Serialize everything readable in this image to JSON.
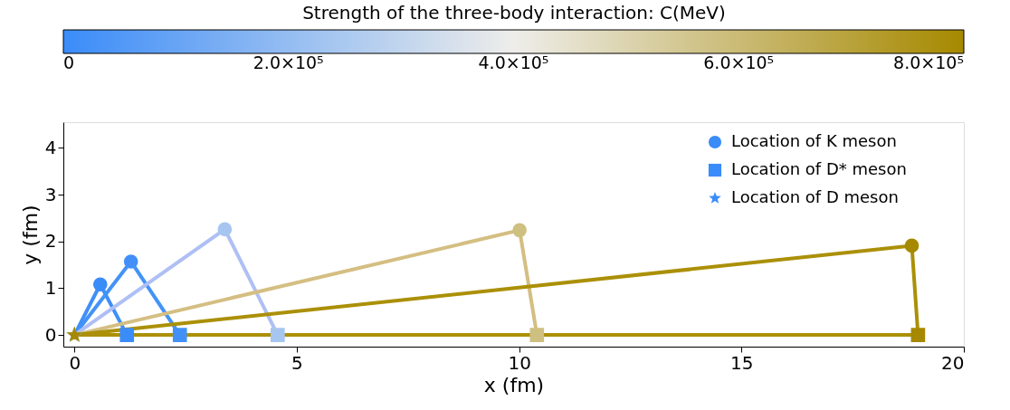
{
  "chart_data": {
    "type": "line",
    "xlabel": "x (fm)",
    "ylabel": "y (fm)",
    "clabel": "Strength of the three-body interaction:  C(MeV)",
    "xlim": [
      -0.25,
      20
    ],
    "ylim": [
      -0.25,
      4.55
    ],
    "xticks": [
      0,
      5,
      10,
      15,
      20
    ],
    "yticks": [
      0,
      1,
      2,
      3,
      4
    ],
    "clim": [
      0,
      800000
    ],
    "cticks": [
      0,
      {
        "value": 200000,
        "label": "2.0×10⁵"
      },
      {
        "value": 400000,
        "label": "4.0×10⁵"
      },
      {
        "value": 600000,
        "label": "6.0×10⁵"
      },
      {
        "value": 800000,
        "label": "8.0×10⁵"
      }
    ],
    "grid": false,
    "legend": "top right",
    "series": [
      {
        "color": "#3f8ff8",
        "x": [
          0,
          0.58,
          1.18
        ],
        "values": [
          0,
          1.08,
          0
        ]
      },
      {
        "color": "#4393f7",
        "x": [
          0,
          1.27,
          2.37
        ],
        "values": [
          0,
          1.57,
          0
        ]
      },
      {
        "color": "#aebff5",
        "x": [
          0,
          3.38,
          4.57
        ],
        "values": [
          0,
          2.26,
          0
        ]
      },
      {
        "color": "#d4be82",
        "x": [
          0,
          10.01,
          10.4
        ],
        "values": [
          0,
          2.24,
          0
        ]
      },
      {
        "color": "#ab9008",
        "x": [
          0,
          18.83,
          18.97
        ],
        "values": [
          0,
          1.91,
          0
        ]
      },
      {
        "color": "#ab9008",
        "x": [
          0,
          18.97
        ],
        "values": [
          0,
          0
        ]
      },
      {
        "type": "scatter",
        "name": "Location of K  meson",
        "marker": "circle",
        "x": [
          0.58,
          1.27,
          3.38,
          10.01,
          18.83
        ],
        "values": [
          1.08,
          1.57,
          2.26,
          2.24,
          1.91
        ],
        "colors": [
          "#3a8cf9",
          "#438ff8",
          "#a6c6f0",
          "#cec081",
          "#a68900"
        ],
        "cvalues": [
          0,
          20000,
          240000,
          580000,
          800000
        ]
      },
      {
        "type": "scatter",
        "name": "Location of D* meson",
        "marker": "square",
        "x": [
          1.18,
          2.37,
          4.57,
          10.4,
          18.97
        ],
        "values": [
          0,
          0,
          0,
          0,
          0
        ],
        "colors": [
          "#3a8cf9",
          "#438ff8",
          "#a6c6f0",
          "#cec081",
          "#a68900"
        ],
        "cvalues": [
          0,
          20000,
          240000,
          580000,
          800000
        ]
      },
      {
        "type": "scatter",
        "name": "Location of D  meson",
        "marker": "star",
        "x": [
          0,
          0,
          0,
          0,
          0
        ],
        "values": [
          0,
          0,
          0,
          0,
          0
        ],
        "colors": [
          "#3a8cf9",
          "#438ff8",
          "#a6c6f0",
          "#cec081",
          "#a68900"
        ],
        "cvalues": [
          0,
          20000,
          240000,
          580000,
          800000
        ]
      }
    ]
  }
}
